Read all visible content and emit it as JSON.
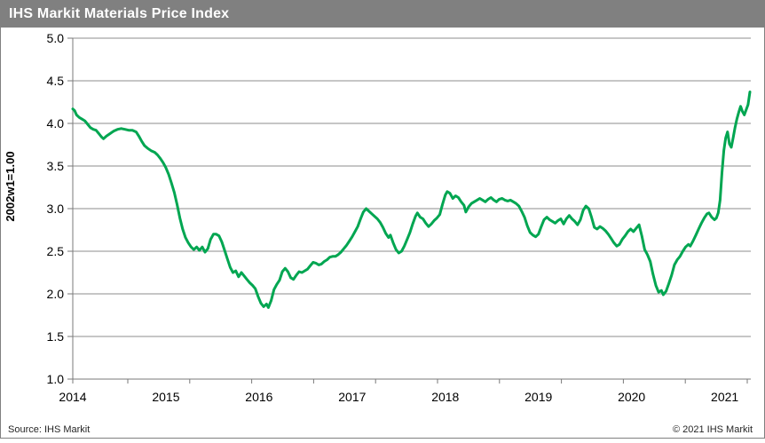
{
  "header": {
    "title": "IHS Markit Materials Price Index",
    "background_color": "#808080",
    "text_color": "#FFFFFF"
  },
  "footer": {
    "source": "Source: IHS Markit",
    "copyright": "© 2021 IHS Markit"
  },
  "colors": {
    "line": "#00A651",
    "grid": "#8C8C8C",
    "axis": "#7A7A7A",
    "frame": "#808080",
    "background": "#FFFFFF",
    "label": "#000000"
  },
  "chart_data": {
    "type": "line",
    "title": "IHS Markit Materials Price Index",
    "xlabel": "",
    "ylabel": "2002w1=1.00",
    "ylim": [
      1.0,
      5.0
    ],
    "xlim": [
      2014.0,
      2021.28
    ],
    "y_ticks": [
      1.0,
      1.5,
      2.0,
      2.5,
      3.0,
      3.5,
      4.0,
      4.5,
      5.0
    ],
    "y_tick_labels": [
      "1.0",
      "1.5",
      "2.0",
      "2.5",
      "3.0",
      "3.5",
      "4.0",
      "4.5",
      "5.0"
    ],
    "x_ticks": [
      2014,
      2015,
      2016,
      2017,
      2018,
      2019,
      2020,
      2021
    ],
    "x_tick_labels": [
      "2014",
      "2015",
      "2016",
      "2017",
      "2018",
      "2019",
      "2020",
      "2021"
    ],
    "grid": "horizontal",
    "legend_position": "none",
    "series": [
      {
        "name": "Materials Price Index (2002w1=1.00)",
        "color": "#00A651",
        "points": [
          [
            2014.0,
            4.17
          ],
          [
            2014.02,
            4.15
          ],
          [
            2014.04,
            4.1
          ],
          [
            2014.07,
            4.07
          ],
          [
            2014.1,
            4.05
          ],
          [
            2014.13,
            4.03
          ],
          [
            2014.16,
            3.99
          ],
          [
            2014.19,
            3.95
          ],
          [
            2014.22,
            3.93
          ],
          [
            2014.25,
            3.92
          ],
          [
            2014.28,
            3.88
          ],
          [
            2014.31,
            3.84
          ],
          [
            2014.33,
            3.82
          ],
          [
            2014.36,
            3.85
          ],
          [
            2014.4,
            3.88
          ],
          [
            2014.44,
            3.91
          ],
          [
            2014.48,
            3.93
          ],
          [
            2014.52,
            3.94
          ],
          [
            2014.56,
            3.93
          ],
          [
            2014.6,
            3.92
          ],
          [
            2014.64,
            3.92
          ],
          [
            2014.68,
            3.9
          ],
          [
            2014.71,
            3.85
          ],
          [
            2014.74,
            3.79
          ],
          [
            2014.77,
            3.74
          ],
          [
            2014.8,
            3.71
          ],
          [
            2014.84,
            3.68
          ],
          [
            2014.88,
            3.66
          ],
          [
            2014.91,
            3.63
          ],
          [
            2014.94,
            3.59
          ],
          [
            2014.97,
            3.54
          ],
          [
            2015.0,
            3.48
          ],
          [
            2015.03,
            3.4
          ],
          [
            2015.06,
            3.3
          ],
          [
            2015.09,
            3.19
          ],
          [
            2015.12,
            3.05
          ],
          [
            2015.15,
            2.89
          ],
          [
            2015.18,
            2.76
          ],
          [
            2015.21,
            2.66
          ],
          [
            2015.24,
            2.6
          ],
          [
            2015.27,
            2.55
          ],
          [
            2015.3,
            2.52
          ],
          [
            2015.33,
            2.55
          ],
          [
            2015.36,
            2.51
          ],
          [
            2015.39,
            2.55
          ],
          [
            2015.42,
            2.49
          ],
          [
            2015.45,
            2.53
          ],
          [
            2015.48,
            2.64
          ],
          [
            2015.51,
            2.7
          ],
          [
            2015.54,
            2.7
          ],
          [
            2015.57,
            2.68
          ],
          [
            2015.6,
            2.61
          ],
          [
            2015.63,
            2.51
          ],
          [
            2015.66,
            2.41
          ],
          [
            2015.69,
            2.31
          ],
          [
            2015.72,
            2.25
          ],
          [
            2015.75,
            2.27
          ],
          [
            2015.78,
            2.2
          ],
          [
            2015.81,
            2.25
          ],
          [
            2015.84,
            2.21
          ],
          [
            2015.87,
            2.17
          ],
          [
            2015.9,
            2.13
          ],
          [
            2015.93,
            2.1
          ],
          [
            2015.96,
            2.06
          ],
          [
            2015.99,
            1.97
          ],
          [
            2016.02,
            1.89
          ],
          [
            2016.05,
            1.85
          ],
          [
            2016.08,
            1.88
          ],
          [
            2016.1,
            1.84
          ],
          [
            2016.13,
            1.92
          ],
          [
            2016.16,
            2.05
          ],
          [
            2016.19,
            2.11
          ],
          [
            2016.22,
            2.16
          ],
          [
            2016.25,
            2.26
          ],
          [
            2016.28,
            2.3
          ],
          [
            2016.31,
            2.26
          ],
          [
            2016.34,
            2.19
          ],
          [
            2016.37,
            2.17
          ],
          [
            2016.4,
            2.22
          ],
          [
            2016.43,
            2.26
          ],
          [
            2016.46,
            2.25
          ],
          [
            2016.49,
            2.27
          ],
          [
            2016.52,
            2.29
          ],
          [
            2016.55,
            2.33
          ],
          [
            2016.58,
            2.37
          ],
          [
            2016.61,
            2.36
          ],
          [
            2016.64,
            2.34
          ],
          [
            2016.67,
            2.35
          ],
          [
            2016.7,
            2.38
          ],
          [
            2016.73,
            2.4
          ],
          [
            2016.76,
            2.43
          ],
          [
            2016.79,
            2.44
          ],
          [
            2016.82,
            2.44
          ],
          [
            2016.85,
            2.46
          ],
          [
            2016.88,
            2.49
          ],
          [
            2016.91,
            2.53
          ],
          [
            2016.94,
            2.57
          ],
          [
            2016.97,
            2.62
          ],
          [
            2017.0,
            2.67
          ],
          [
            2017.03,
            2.73
          ],
          [
            2017.06,
            2.79
          ],
          [
            2017.09,
            2.88
          ],
          [
            2017.12,
            2.96
          ],
          [
            2017.15,
            3.0
          ],
          [
            2017.18,
            2.97
          ],
          [
            2017.21,
            2.94
          ],
          [
            2017.24,
            2.91
          ],
          [
            2017.27,
            2.88
          ],
          [
            2017.3,
            2.84
          ],
          [
            2017.33,
            2.78
          ],
          [
            2017.36,
            2.71
          ],
          [
            2017.39,
            2.66
          ],
          [
            2017.41,
            2.69
          ],
          [
            2017.44,
            2.6
          ],
          [
            2017.47,
            2.52
          ],
          [
            2017.5,
            2.48
          ],
          [
            2017.53,
            2.5
          ],
          [
            2017.56,
            2.56
          ],
          [
            2017.59,
            2.64
          ],
          [
            2017.62,
            2.72
          ],
          [
            2017.65,
            2.82
          ],
          [
            2017.68,
            2.91
          ],
          [
            2017.7,
            2.95
          ],
          [
            2017.73,
            2.9
          ],
          [
            2017.76,
            2.88
          ],
          [
            2017.79,
            2.83
          ],
          [
            2017.82,
            2.79
          ],
          [
            2017.85,
            2.82
          ],
          [
            2017.88,
            2.86
          ],
          [
            2017.91,
            2.89
          ],
          [
            2017.94,
            2.93
          ],
          [
            2017.97,
            3.05
          ],
          [
            2018.0,
            3.16
          ],
          [
            2018.02,
            3.2
          ],
          [
            2018.05,
            3.18
          ],
          [
            2018.08,
            3.12
          ],
          [
            2018.11,
            3.15
          ],
          [
            2018.14,
            3.13
          ],
          [
            2018.17,
            3.08
          ],
          [
            2018.2,
            3.04
          ],
          [
            2018.22,
            2.96
          ],
          [
            2018.25,
            3.02
          ],
          [
            2018.28,
            3.06
          ],
          [
            2018.31,
            3.08
          ],
          [
            2018.34,
            3.1
          ],
          [
            2018.37,
            3.12
          ],
          [
            2018.4,
            3.1
          ],
          [
            2018.43,
            3.08
          ],
          [
            2018.46,
            3.11
          ],
          [
            2018.49,
            3.13
          ],
          [
            2018.52,
            3.1
          ],
          [
            2018.55,
            3.08
          ],
          [
            2018.58,
            3.11
          ],
          [
            2018.61,
            3.12
          ],
          [
            2018.64,
            3.1
          ],
          [
            2018.67,
            3.09
          ],
          [
            2018.7,
            3.1
          ],
          [
            2018.73,
            3.08
          ],
          [
            2018.76,
            3.06
          ],
          [
            2018.79,
            3.03
          ],
          [
            2018.82,
            2.97
          ],
          [
            2018.85,
            2.9
          ],
          [
            2018.88,
            2.8
          ],
          [
            2018.91,
            2.72
          ],
          [
            2018.94,
            2.69
          ],
          [
            2018.97,
            2.67
          ],
          [
            2019.0,
            2.7
          ],
          [
            2019.03,
            2.79
          ],
          [
            2019.06,
            2.87
          ],
          [
            2019.09,
            2.9
          ],
          [
            2019.12,
            2.87
          ],
          [
            2019.15,
            2.85
          ],
          [
            2019.18,
            2.83
          ],
          [
            2019.21,
            2.86
          ],
          [
            2019.24,
            2.88
          ],
          [
            2019.27,
            2.82
          ],
          [
            2019.3,
            2.88
          ],
          [
            2019.33,
            2.92
          ],
          [
            2019.36,
            2.88
          ],
          [
            2019.39,
            2.85
          ],
          [
            2019.42,
            2.81
          ],
          [
            2019.45,
            2.87
          ],
          [
            2019.48,
            2.98
          ],
          [
            2019.51,
            3.03
          ],
          [
            2019.54,
            3.0
          ],
          [
            2019.57,
            2.9
          ],
          [
            2019.6,
            2.78
          ],
          [
            2019.63,
            2.76
          ],
          [
            2019.66,
            2.79
          ],
          [
            2019.69,
            2.77
          ],
          [
            2019.72,
            2.74
          ],
          [
            2019.75,
            2.7
          ],
          [
            2019.78,
            2.65
          ],
          [
            2019.81,
            2.6
          ],
          [
            2019.84,
            2.56
          ],
          [
            2019.87,
            2.58
          ],
          [
            2019.9,
            2.64
          ],
          [
            2019.93,
            2.68
          ],
          [
            2019.96,
            2.73
          ],
          [
            2019.99,
            2.76
          ],
          [
            2020.02,
            2.73
          ],
          [
            2020.05,
            2.77
          ],
          [
            2020.08,
            2.81
          ],
          [
            2020.11,
            2.68
          ],
          [
            2020.14,
            2.52
          ],
          [
            2020.17,
            2.46
          ],
          [
            2020.2,
            2.38
          ],
          [
            2020.23,
            2.23
          ],
          [
            2020.26,
            2.1
          ],
          [
            2020.29,
            2.02
          ],
          [
            2020.32,
            2.04
          ],
          [
            2020.34,
            1.99
          ],
          [
            2020.37,
            2.03
          ],
          [
            2020.4,
            2.12
          ],
          [
            2020.43,
            2.22
          ],
          [
            2020.46,
            2.34
          ],
          [
            2020.49,
            2.4
          ],
          [
            2020.52,
            2.44
          ],
          [
            2020.55,
            2.5
          ],
          [
            2020.58,
            2.55
          ],
          [
            2020.61,
            2.58
          ],
          [
            2020.63,
            2.56
          ],
          [
            2020.66,
            2.62
          ],
          [
            2020.69,
            2.69
          ],
          [
            2020.72,
            2.76
          ],
          [
            2020.75,
            2.83
          ],
          [
            2020.78,
            2.89
          ],
          [
            2020.81,
            2.94
          ],
          [
            2020.83,
            2.95
          ],
          [
            2020.86,
            2.9
          ],
          [
            2020.89,
            2.87
          ],
          [
            2020.91,
            2.89
          ],
          [
            2020.93,
            2.95
          ],
          [
            2020.95,
            3.1
          ],
          [
            2020.97,
            3.42
          ],
          [
            2020.99,
            3.68
          ],
          [
            2021.01,
            3.83
          ],
          [
            2021.03,
            3.9
          ],
          [
            2021.05,
            3.76
          ],
          [
            2021.07,
            3.72
          ],
          [
            2021.09,
            3.83
          ],
          [
            2021.11,
            3.95
          ],
          [
            2021.13,
            4.05
          ],
          [
            2021.15,
            4.13
          ],
          [
            2021.17,
            4.2
          ],
          [
            2021.19,
            4.14
          ],
          [
            2021.21,
            4.1
          ],
          [
            2021.23,
            4.16
          ],
          [
            2021.25,
            4.22
          ],
          [
            2021.27,
            4.37
          ]
        ]
      }
    ]
  }
}
